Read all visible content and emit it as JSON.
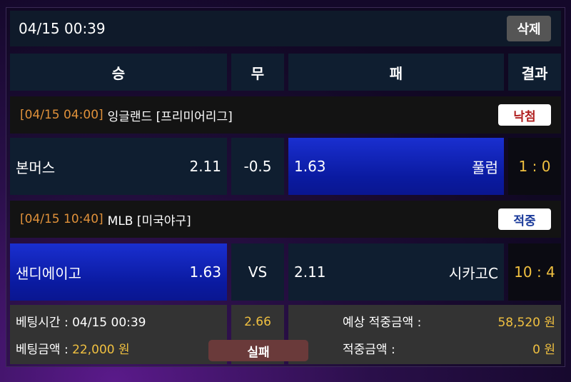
{
  "header": {
    "datetime": "04/15 00:39",
    "delete_label": "삭제"
  },
  "columns": {
    "win": "승",
    "draw": "무",
    "lose": "패",
    "result": "결과"
  },
  "matches": [
    {
      "time": "[04/15 04:00]",
      "league": "잉글랜드 [프리미어리그]",
      "status": "낙첨",
      "status_color": "#b02020",
      "home": "본머스",
      "home_odds": "2.11",
      "middle": "-0.5",
      "away_odds": "1.63",
      "away": "풀럼",
      "score": "1 : 0",
      "selected": "away"
    },
    {
      "time": "[04/15 10:40]",
      "league": "MLB [미국야구]",
      "status": "적중",
      "status_color": "#1a3a9a",
      "home": "샌디에이고",
      "home_odds": "1.63",
      "middle": "VS",
      "away_odds": "2.11",
      "away": "시카고C",
      "score": "10 : 4",
      "selected": "home"
    }
  ],
  "footer": {
    "bet_time_label": "베팅시간 :",
    "bet_time": "04/15 00:39",
    "bet_amount_label": "베팅금액 :",
    "bet_amount": "22,000 원",
    "total_odds": "2.66",
    "result_label": "실패",
    "expected_label": "예상 적중금액 :",
    "expected": "58,520 원",
    "won_label": "적중금액 :",
    "won": "0 원"
  }
}
